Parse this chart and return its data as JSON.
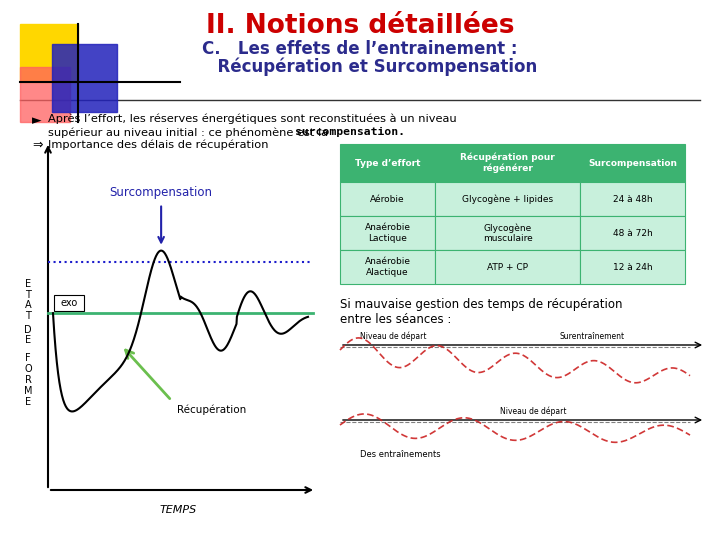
{
  "title_main": "II. Notions détaillées",
  "title_sub_line1": "C.   Les effets de l’entrainement :",
  "title_sub_line2": "      Récupération et Surcompensation",
  "title_main_color": "#CC0000",
  "title_sub_color": "#2B2B8C",
  "bg_color": "#FFFFFF",
  "table_header_bg": "#3CB371",
  "table_header_text": "#FFFFFF",
  "table_row_bg": "#C8F0DC",
  "table_border": "#3CB371",
  "table_headers": [
    "Type d’effort",
    "Récupération pour\nrégénérer",
    "Surcompensation"
  ],
  "table_rows": [
    [
      "Aérobie",
      "Glycogène + lipides",
      "24 à 48h"
    ],
    [
      "Anaérobie\nLactique",
      "Glycogène\nmusculaire",
      "48 à 72h"
    ],
    [
      "Anaérobie\nAlactique",
      "ATP + CP",
      "12 à 24h"
    ]
  ],
  "si_mauvaise_text": "Si mauvaise gestion des temps de récupération\nentre les séances :",
  "graph_line_color": "#000000",
  "ref_line_color": "#1C1CCC",
  "green_line_color": "#3CB371",
  "surcomp_label_color": "#2222AA",
  "recup_arrow_color": "#6BBF4E",
  "sq_yellow": "#FFD700",
  "sq_red": "#FF6060",
  "sq_blue": "#2222BB",
  "separator_color": "#333333"
}
